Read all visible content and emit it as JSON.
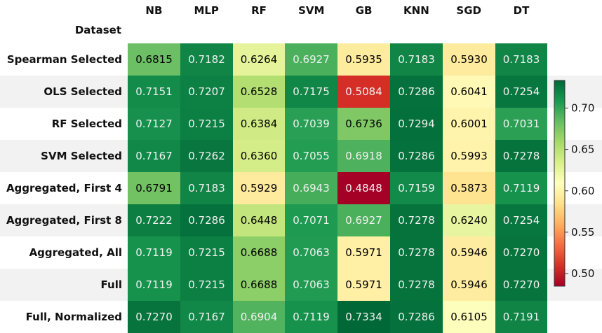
{
  "chart_data": {
    "type": "heatmap",
    "index_name": "Dataset",
    "columns": [
      "NB",
      "MLP",
      "RF",
      "SVM",
      "GB",
      "KNN",
      "SGD",
      "DT"
    ],
    "rows": [
      "Spearman Selected",
      "OLS Selected",
      "RF Selected",
      "SVM Selected",
      "Aggregated, First 4",
      "Aggregated, First 8",
      "Aggregated, All",
      "Full",
      "Full, Normalized"
    ],
    "values": [
      [
        "0.6815",
        "0.7182",
        "0.6264",
        "0.6927",
        "0.5935",
        "0.7183",
        "0.5930",
        "0.7183"
      ],
      [
        "0.7151",
        "0.7207",
        "0.6528",
        "0.7175",
        "0.5084",
        "0.7286",
        "0.6041",
        "0.7254"
      ],
      [
        "0.7127",
        "0.7215",
        "0.6384",
        "0.7039",
        "0.6736",
        "0.7294",
        "0.6001",
        "0.7031"
      ],
      [
        "0.7167",
        "0.7262",
        "0.6360",
        "0.7055",
        "0.6918",
        "0.7286",
        "0.5993",
        "0.7278"
      ],
      [
        "0.6791",
        "0.7183",
        "0.5929",
        "0.6943",
        "0.4848",
        "0.7159",
        "0.5873",
        "0.7119"
      ],
      [
        "0.7222",
        "0.7286",
        "0.6448",
        "0.7071",
        "0.6927",
        "0.7278",
        "0.6240",
        "0.7254"
      ],
      [
        "0.7119",
        "0.7215",
        "0.6688",
        "0.7063",
        "0.5971",
        "0.7278",
        "0.5946",
        "0.7270"
      ],
      [
        "0.7119",
        "0.7215",
        "0.6688",
        "0.7063",
        "0.5971",
        "0.7278",
        "0.5946",
        "0.7270"
      ],
      [
        "0.7270",
        "0.7167",
        "0.6904",
        "0.7119",
        "0.7334",
        "0.7286",
        "0.6105",
        "0.7191"
      ]
    ],
    "colormap": "RdYlGn",
    "colormap_stops": [
      "#a50026",
      "#d73027",
      "#f46d43",
      "#fdae61",
      "#fee08b",
      "#ffffbf",
      "#d9ef8b",
      "#a6d96a",
      "#66bd63",
      "#1a9850",
      "#006837"
    ],
    "color_range": [
      0.4848,
      0.7334
    ],
    "colorbar_ticks": [
      "0.50",
      "0.55",
      "0.60",
      "0.65",
      "0.70"
    ],
    "row_striping": true
  }
}
